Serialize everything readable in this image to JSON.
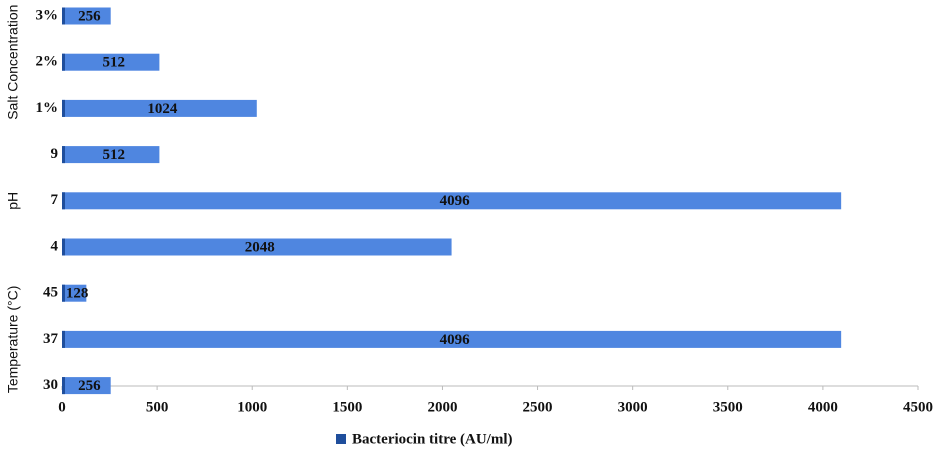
{
  "chart_data": {
    "type": "bar",
    "orientation": "horizontal",
    "legend": {
      "name": "Bacteriocin titre (AU/ml)",
      "color": "#4f86e0"
    },
    "groups": [
      {
        "name": "Salt Concentration",
        "categories": [
          "3%",
          "2%",
          "1%"
        ],
        "values": [
          256,
          512,
          1024
        ]
      },
      {
        "name": "pH",
        "categories": [
          "9",
          "7",
          "4"
        ],
        "values": [
          512,
          4096,
          2048
        ]
      },
      {
        "name": "Temperature (°C)",
        "categories": [
          "45",
          "37",
          "30"
        ],
        "values": [
          128,
          4096,
          256
        ]
      }
    ],
    "xlim": [
      0,
      4500
    ],
    "xticks": [
      0,
      500,
      1000,
      1500,
      2000,
      2500,
      3000,
      3500,
      4000,
      4500
    ]
  }
}
